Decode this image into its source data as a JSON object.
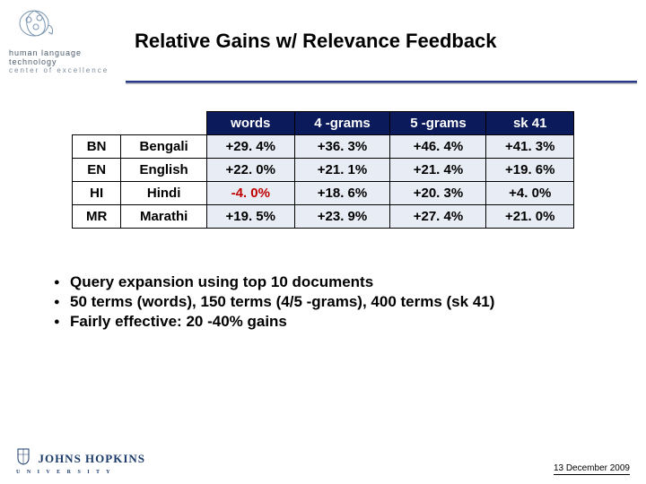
{
  "header": {
    "title": "Relative Gains w/ Relevance Feedback",
    "logo_line1": "human language technology",
    "logo_line2": "center of excellence"
  },
  "table": {
    "columns": [
      "words",
      "4 -grams",
      "5 -grams",
      "sk 41"
    ],
    "rows": [
      {
        "code": "BN",
        "name": "Bengali",
        "cells": [
          "+29. 4%",
          "+36. 3%",
          "+46. 4%",
          "+41. 3%"
        ],
        "neg": [
          false,
          false,
          false,
          false
        ]
      },
      {
        "code": "EN",
        "name": "English",
        "cells": [
          "+22. 0%",
          "+21. 1%",
          "+21. 4%",
          "+19. 6%"
        ],
        "neg": [
          false,
          false,
          false,
          false
        ]
      },
      {
        "code": "HI",
        "name": "Hindi",
        "cells": [
          "-4. 0%",
          "+18. 6%",
          "+20. 3%",
          "+4. 0%"
        ],
        "neg": [
          true,
          false,
          false,
          false
        ]
      },
      {
        "code": "MR",
        "name": "Marathi",
        "cells": [
          "+19. 5%",
          "+23. 9%",
          "+27. 4%",
          "+21. 0%"
        ],
        "neg": [
          false,
          false,
          false,
          false
        ]
      }
    ],
    "header_bg": "#0a1a5a",
    "cell_bg": "#e8ecf4",
    "neg_color": "#c00000"
  },
  "bullets": [
    "Query expansion using top 10 documents",
    "50 terms (words), 150 terms (4/5 -grams), 400 terms (sk 41)",
    "Fairly effective: 20 -40% gains"
  ],
  "footer": {
    "jhu": "JOHNS HOPKINS",
    "jhu_sub": "U N I V E R S I T Y",
    "date": "13 December 2009"
  }
}
